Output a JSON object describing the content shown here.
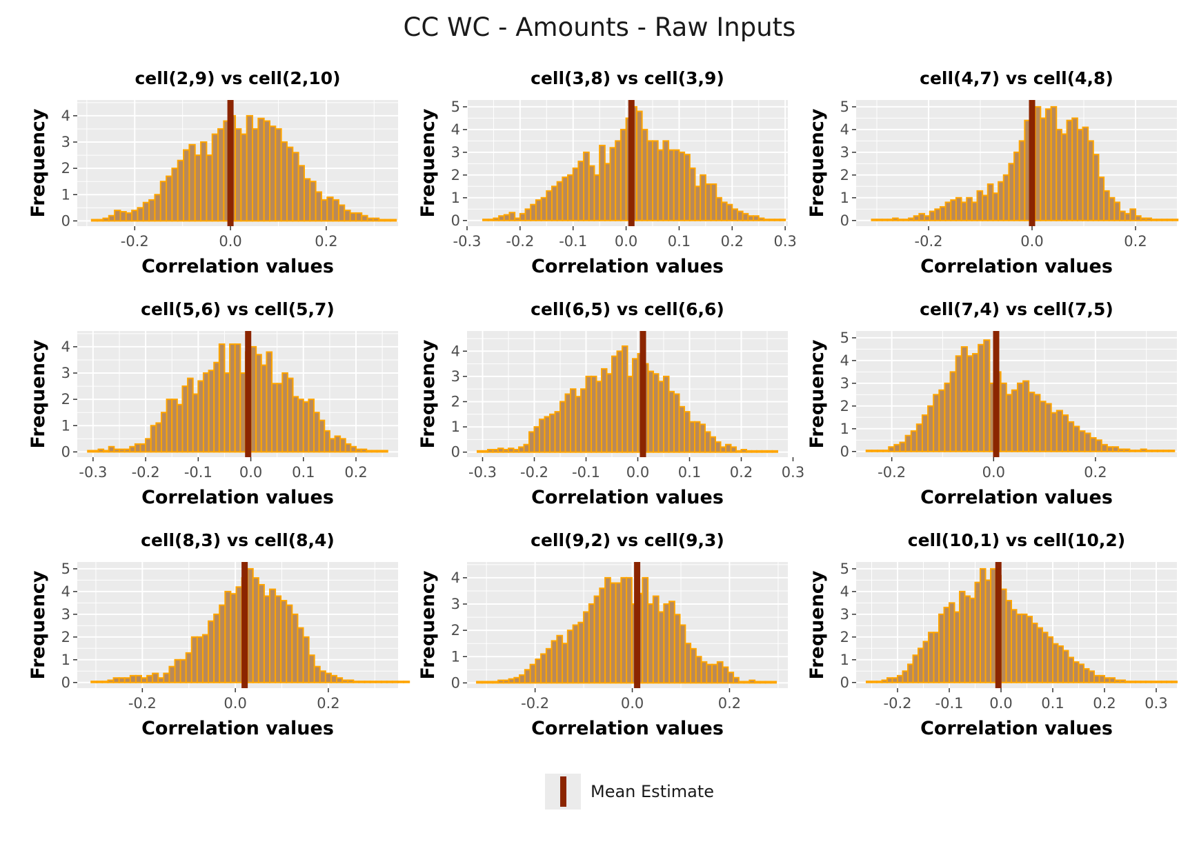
{
  "figure": {
    "title": "CC WC - Amounts - Raw Inputs",
    "legend_label": "Mean Estimate",
    "colors": {
      "panel_bg": "#ebebeb",
      "grid": "#ffffff",
      "bar_fill": "#b8895a",
      "bar_outline": "#ffa500",
      "mean_line": "#8b2500"
    }
  },
  "chart_data": [
    {
      "type": "bar",
      "title": "cell(2,9) vs cell(2,10)",
      "xlabel": "Correlation values",
      "ylabel": "Frequency",
      "xlim": [
        -0.32,
        0.35
      ],
      "ylim": [
        -0.2,
        4.6
      ],
      "xticks": [
        -0.2,
        0.0,
        0.2
      ],
      "xtick_labels": [
        "-0.2",
        "0.0",
        "0.2"
      ],
      "yticks": [
        0,
        1,
        2,
        3,
        4
      ],
      "bin_start": -0.29,
      "bin_width": 0.012,
      "values": [
        0.05,
        0.05,
        0.1,
        0.2,
        0.4,
        0.35,
        0.3,
        0.4,
        0.5,
        0.7,
        0.8,
        1.0,
        1.5,
        1.7,
        2.0,
        2.3,
        2.7,
        2.9,
        2.5,
        3.0,
        2.5,
        3.3,
        3.5,
        3.8,
        4.0,
        3.5,
        3.3,
        4.0,
        3.5,
        3.9,
        3.8,
        3.6,
        3.5,
        3.0,
        2.8,
        2.6,
        2.1,
        1.6,
        1.5,
        1.1,
        0.8,
        0.9,
        0.8,
        0.6,
        0.4,
        0.3,
        0.3,
        0.2,
        0.1,
        0.1,
        0.05,
        0.05,
        0.05
      ],
      "mean": 0.0
    },
    {
      "type": "bar",
      "title": "cell(3,8) vs cell(3,9)",
      "xlabel": "Correlation values",
      "ylabel": "Frequency",
      "xlim": [
        -0.3,
        0.305
      ],
      "ylim": [
        -0.25,
        5.3
      ],
      "xticks": [
        -0.3,
        -0.2,
        -0.1,
        0.0,
        0.1,
        0.2,
        0.3
      ],
      "xtick_labels": [
        "-0.3",
        "-0.2",
        "-0.1",
        "0.0",
        "0.1",
        "0.2",
        "0.3"
      ],
      "yticks": [
        0,
        1,
        2,
        3,
        4,
        5
      ],
      "bin_start": -0.27,
      "bin_width": 0.01,
      "values": [
        0.05,
        0.05,
        0.1,
        0.2,
        0.25,
        0.35,
        0.1,
        0.3,
        0.5,
        0.7,
        0.9,
        1.0,
        1.3,
        1.5,
        1.7,
        1.9,
        2.0,
        2.3,
        2.6,
        3.0,
        2.4,
        2.0,
        3.3,
        2.5,
        3.2,
        3.5,
        4.0,
        4.5,
        5.0,
        4.8,
        4.0,
        3.5,
        3.5,
        3.1,
        3.5,
        3.1,
        3.1,
        3.0,
        2.9,
        2.3,
        1.5,
        2.0,
        1.6,
        1.6,
        1.0,
        0.8,
        0.7,
        0.5,
        0.4,
        0.3,
        0.2,
        0.2,
        0.1,
        0.05,
        0.05,
        0.05,
        0.05
      ],
      "mean": 0.01
    },
    {
      "type": "bar",
      "title": "cell(4,7) vs cell(4,8)",
      "xlabel": "Correlation values",
      "ylabel": "Frequency",
      "xlim": [
        -0.34,
        0.28
      ],
      "ylim": [
        -0.25,
        5.3
      ],
      "xticks": [
        -0.2,
        0.0,
        0.2
      ],
      "xtick_labels": [
        "-0.2",
        "0.0",
        "0.2"
      ],
      "yticks": [
        0,
        1,
        2,
        3,
        4,
        5
      ],
      "bin_start": -0.31,
      "bin_width": 0.0102,
      "values": [
        0.05,
        0.05,
        0.05,
        0.05,
        0.1,
        0.05,
        0.05,
        0.1,
        0.2,
        0.3,
        0.2,
        0.4,
        0.5,
        0.6,
        0.8,
        0.9,
        1.0,
        0.8,
        1.0,
        0.8,
        1.3,
        1.1,
        1.6,
        1.2,
        1.7,
        2.0,
        2.5,
        3.0,
        3.5,
        4.4,
        4.5,
        5.0,
        4.5,
        4.9,
        5.0,
        4.0,
        3.8,
        4.4,
        4.5,
        4.0,
        4.1,
        3.5,
        2.9,
        1.9,
        1.3,
        1.0,
        0.8,
        0.4,
        0.3,
        0.5,
        0.2,
        0.1,
        0.1,
        0.05,
        0.05,
        0.05,
        0.05,
        0.05
      ],
      "mean": 0.0
    },
    {
      "type": "bar",
      "title": "cell(5,6) vs cell(5,7)",
      "xlabel": "Correlation values",
      "ylabel": "Frequency",
      "xlim": [
        -0.33,
        0.28
      ],
      "ylim": [
        -0.2,
        4.6
      ],
      "xticks": [
        -0.3,
        -0.2,
        -0.1,
        0.0,
        0.1,
        0.2
      ],
      "xtick_labels": [
        "-0.3",
        "-0.2",
        "-0.1",
        "0.0",
        "0.1",
        "0.2"
      ],
      "yticks": [
        0,
        1,
        2,
        3,
        4
      ],
      "bin_start": -0.31,
      "bin_width": 0.01,
      "values": [
        0.05,
        0.05,
        0.1,
        0.05,
        0.2,
        0.1,
        0.1,
        0.1,
        0.2,
        0.3,
        0.3,
        0.5,
        1.0,
        1.1,
        1.5,
        2.0,
        2.0,
        1.8,
        2.5,
        2.8,
        2.2,
        2.7,
        3.0,
        3.1,
        3.4,
        4.1,
        3.0,
        4.1,
        4.1,
        3.0,
        3.8,
        4.0,
        3.7,
        3.3,
        3.8,
        2.6,
        2.6,
        3.0,
        2.8,
        2.1,
        2.0,
        1.9,
        2.0,
        1.5,
        1.2,
        0.8,
        0.5,
        0.6,
        0.5,
        0.3,
        0.2,
        0.1,
        0.1,
        0.05,
        0.05,
        0.05,
        0.05
      ],
      "mean": -0.005
    },
    {
      "type": "bar",
      "title": "cell(6,5) vs cell(6,6)",
      "xlabel": "Correlation values",
      "ylabel": "Frequency",
      "xlim": [
        -0.33,
        0.29
      ],
      "ylim": [
        -0.2,
        4.8
      ],
      "xticks": [
        -0.3,
        -0.2,
        -0.1,
        0.0,
        0.1,
        0.2,
        0.3
      ],
      "xtick_labels": [
        "-0.3",
        "-0.2",
        "-0.1",
        "0.0",
        "0.1",
        "0.2",
        "0.3"
      ],
      "yticks": [
        0,
        1,
        2,
        3,
        4
      ],
      "bin_start": -0.31,
      "bin_width": 0.01,
      "values": [
        0.05,
        0.05,
        0.1,
        0.1,
        0.15,
        0.1,
        0.15,
        0.1,
        0.2,
        0.3,
        0.8,
        1.0,
        1.3,
        1.4,
        1.5,
        1.6,
        2.0,
        2.3,
        2.5,
        2.2,
        2.5,
        3.0,
        3.0,
        2.8,
        3.3,
        3.1,
        3.8,
        4.0,
        4.2,
        3.0,
        3.7,
        3.9,
        3.5,
        3.2,
        3.1,
        2.8,
        3.0,
        2.4,
        2.3,
        1.8,
        1.6,
        1.2,
        1.2,
        1.1,
        0.8,
        0.6,
        0.4,
        0.2,
        0.3,
        0.2,
        0.05,
        0.1,
        0.05,
        0.05,
        0.05,
        0.05,
        0.05,
        0.05
      ],
      "mean": 0.01
    },
    {
      "type": "bar",
      "title": "cell(7,4) vs cell(7,5)",
      "xlabel": "Correlation values",
      "ylabel": "Frequency",
      "xlim": [
        -0.27,
        0.36
      ],
      "ylim": [
        -0.25,
        5.3
      ],
      "xticks": [
        -0.2,
        0.0,
        0.2
      ],
      "xtick_labels": [
        "-0.2",
        "0.0",
        "0.2"
      ],
      "yticks": [
        0,
        1,
        2,
        3,
        4,
        5
      ],
      "bin_start": -0.25,
      "bin_width": 0.011,
      "values": [
        0.05,
        0.05,
        0.05,
        0.05,
        0.2,
        0.3,
        0.4,
        0.7,
        0.9,
        1.2,
        1.6,
        2.0,
        2.5,
        2.7,
        3.0,
        3.5,
        4.2,
        4.6,
        4.2,
        4.3,
        4.7,
        4.9,
        3.0,
        3.5,
        3.0,
        2.5,
        2.7,
        3.0,
        3.1,
        2.6,
        2.5,
        2.2,
        2.1,
        1.7,
        1.8,
        1.6,
        1.3,
        1.1,
        0.9,
        0.8,
        0.6,
        0.5,
        0.3,
        0.2,
        0.2,
        0.1,
        0.1,
        0.05,
        0.05,
        0.1,
        0.05,
        0.05,
        0.05,
        0.05,
        0.05
      ],
      "mean": 0.005
    },
    {
      "type": "bar",
      "title": "cell(8,3) vs cell(8,4)",
      "xlabel": "Correlation values",
      "ylabel": "Frequency",
      "xlim": [
        -0.34,
        0.35
      ],
      "ylim": [
        -0.25,
        5.3
      ],
      "xticks": [
        -0.2,
        0.0,
        0.2
      ],
      "xtick_labels": [
        "-0.2",
        "0.0",
        "0.2"
      ],
      "yticks": [
        0,
        1,
        2,
        3,
        4,
        5
      ],
      "bin_start": -0.31,
      "bin_width": 0.012,
      "values": [
        0.05,
        0.05,
        0.05,
        0.1,
        0.2,
        0.2,
        0.2,
        0.3,
        0.3,
        0.2,
        0.3,
        0.4,
        0.2,
        0.4,
        0.7,
        1.0,
        1.0,
        1.3,
        2.0,
        2.0,
        2.1,
        2.7,
        3.0,
        3.4,
        4.0,
        3.9,
        4.2,
        4.6,
        5.0,
        4.6,
        4.3,
        3.8,
        4.1,
        3.8,
        3.6,
        3.4,
        3.0,
        2.4,
        2.0,
        1.2,
        0.7,
        0.5,
        0.4,
        0.3,
        0.2,
        0.1,
        0.1,
        0.05,
        0.05,
        0.05,
        0.05,
        0.05,
        0.05,
        0.05,
        0.05,
        0.05,
        0.05
      ],
      "mean": 0.02
    },
    {
      "type": "bar",
      "title": "cell(9,2) vs cell(9,3)",
      "xlabel": "Correlation values",
      "ylabel": "Frequency",
      "xlim": [
        -0.34,
        0.32
      ],
      "ylim": [
        -0.2,
        4.6
      ],
      "xticks": [
        -0.2,
        0.0,
        0.2
      ],
      "xtick_labels": [
        "-0.2",
        "0.0",
        "0.2"
      ],
      "yticks": [
        0,
        1,
        2,
        3,
        4
      ],
      "bin_start": -0.32,
      "bin_width": 0.011,
      "values": [
        0.05,
        0.05,
        0.05,
        0.05,
        0.1,
        0.1,
        0.15,
        0.2,
        0.3,
        0.5,
        0.7,
        0.9,
        1.1,
        1.3,
        1.6,
        1.8,
        1.5,
        2.0,
        2.2,
        2.3,
        2.7,
        3.0,
        3.3,
        3.6,
        4.0,
        3.8,
        3.8,
        4.0,
        4.0,
        3.0,
        3.4,
        4.0,
        3.0,
        3.3,
        2.7,
        3.0,
        3.1,
        2.6,
        2.2,
        1.5,
        1.3,
        1.0,
        0.8,
        0.7,
        0.7,
        0.8,
        0.6,
        0.4,
        0.2,
        0.05,
        0.05,
        0.1,
        0.05,
        0.05,
        0.05,
        0.05
      ],
      "mean": 0.01
    },
    {
      "type": "bar",
      "title": "cell(10,1) vs cell(10,2)",
      "xlabel": "Correlation values",
      "ylabel": "Frequency",
      "xlim": [
        -0.28,
        0.34
      ],
      "ylim": [
        -0.25,
        5.3
      ],
      "xticks": [
        -0.2,
        -0.1,
        0.0,
        0.1,
        0.2,
        0.3
      ],
      "xtick_labels": [
        "-0.2",
        "-0.1",
        "0.0",
        "0.1",
        "0.2",
        "0.3"
      ],
      "yticks": [
        0,
        1,
        2,
        3,
        4,
        5
      ],
      "bin_start": -0.26,
      "bin_width": 0.01,
      "values": [
        0.05,
        0.05,
        0.05,
        0.1,
        0.2,
        0.2,
        0.3,
        0.5,
        0.8,
        1.2,
        1.5,
        1.8,
        2.2,
        2.2,
        3.0,
        3.3,
        3.5,
        3.1,
        4.0,
        3.8,
        3.7,
        4.4,
        5.0,
        4.5,
        5.0,
        4.7,
        4.1,
        3.6,
        3.2,
        3.0,
        3.0,
        2.9,
        2.6,
        2.4,
        2.2,
        2.0,
        1.7,
        1.6,
        1.4,
        1.1,
        0.9,
        0.8,
        0.6,
        0.5,
        0.3,
        0.3,
        0.2,
        0.2,
        0.1,
        0.1,
        0.05,
        0.05,
        0.05,
        0.05,
        0.05,
        0.05,
        0.05,
        0.05,
        0.05,
        0.05
      ],
      "mean": -0.005
    }
  ]
}
